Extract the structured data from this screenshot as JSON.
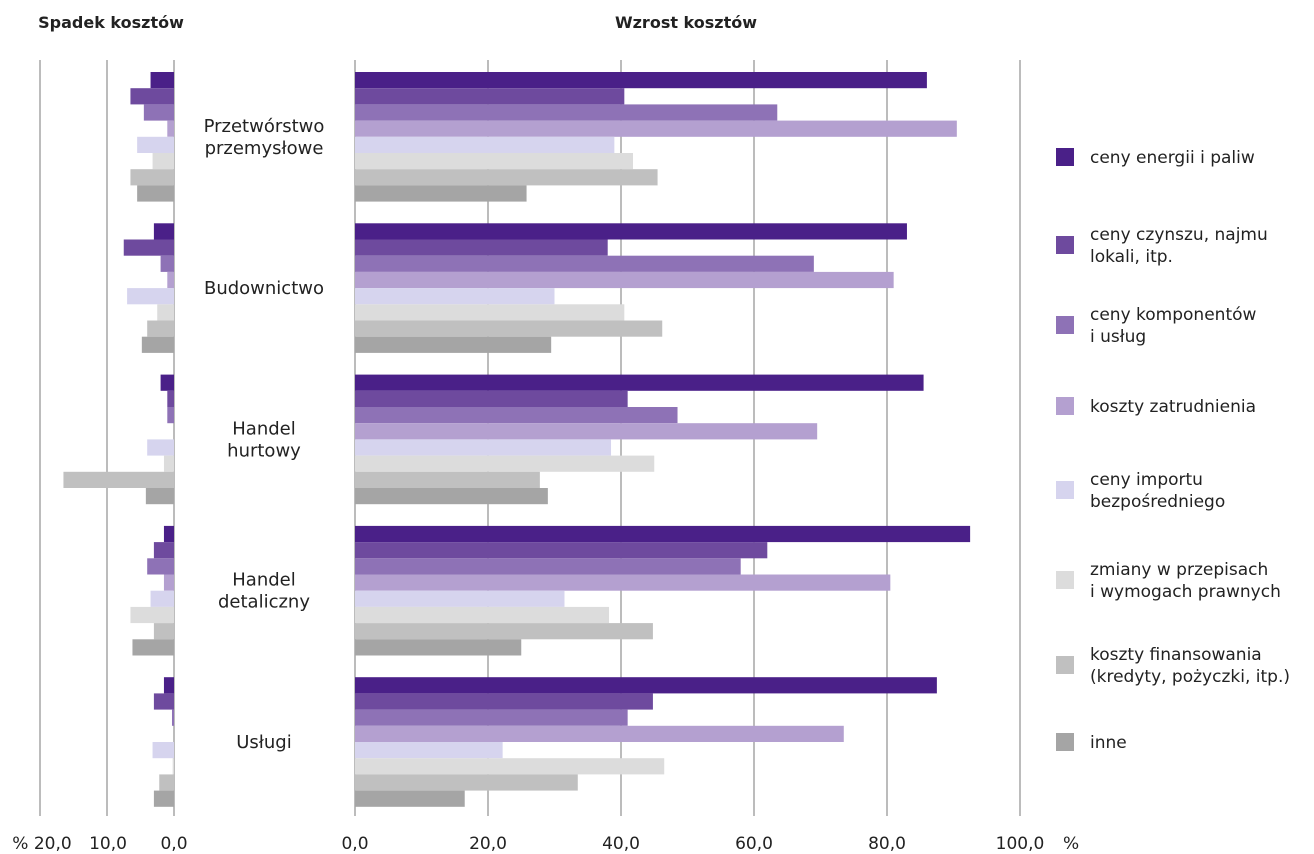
{
  "chart_data": {
    "type": "bar",
    "orientation": "horizontal",
    "unit": "%",
    "left_title": "Spadek kosztów",
    "right_title": "Wzrost kosztów",
    "categories": [
      [
        "Przetwórstwo",
        "przemysłowe"
      ],
      [
        "Budownictwo"
      ],
      [
        "Handel",
        "hurtowy"
      ],
      [
        "Handel",
        "detaliczny"
      ],
      [
        "Usługi"
      ]
    ],
    "series": [
      {
        "name": [
          "ceny energii i paliw"
        ],
        "color": "#4a2088",
        "decrease": [
          3.5,
          3.0,
          2.0,
          1.5,
          1.5
        ],
        "increase": [
          86.0,
          83.0,
          85.5,
          92.5,
          87.5
        ]
      },
      {
        "name": [
          "ceny czynszu, najmu",
          "lokali, itp."
        ],
        "color": "#6e4a9e",
        "decrease": [
          6.5,
          7.5,
          1.0,
          3.0,
          3.0
        ],
        "increase": [
          40.5,
          38.0,
          41.0,
          62.0,
          44.8
        ]
      },
      {
        "name": [
          "ceny komponentów",
          "i usług"
        ],
        "color": "#8e72b6",
        "decrease": [
          4.5,
          2.0,
          1.0,
          4.0,
          0.3
        ],
        "increase": [
          63.5,
          69.0,
          48.5,
          58.0,
          41.0
        ]
      },
      {
        "name": [
          "koszty zatrudnienia"
        ],
        "color": "#b4a0d0",
        "decrease": [
          1.0,
          1.0,
          0.0,
          1.5,
          0.0
        ],
        "increase": [
          90.5,
          81.0,
          69.5,
          80.5,
          73.5
        ]
      },
      {
        "name": [
          "ceny importu",
          "bezpośredniego"
        ],
        "color": "#d6d4ee",
        "decrease": [
          5.5,
          7.0,
          4.0,
          3.5,
          3.2
        ],
        "increase": [
          39.0,
          30.0,
          38.5,
          31.5,
          22.2
        ]
      },
      {
        "name": [
          "zmiany w przepisach",
          "i wymogach prawnych"
        ],
        "color": "#dcdcdc",
        "decrease": [
          3.2,
          2.5,
          1.5,
          6.5,
          0.2
        ],
        "increase": [
          41.8,
          40.5,
          45.0,
          38.2,
          46.5
        ]
      },
      {
        "name": [
          "koszty finansowania",
          "(kredyty, pożyczki, itp.)"
        ],
        "color": "#c0c0c0",
        "decrease": [
          6.5,
          4.0,
          16.5,
          3.0,
          2.2
        ],
        "increase": [
          45.5,
          46.2,
          27.8,
          44.8,
          33.5
        ]
      },
      {
        "name": [
          "inne"
        ],
        "color": "#a5a5a5",
        "decrease": [
          5.5,
          4.8,
          4.2,
          6.2,
          3.0
        ],
        "increase": [
          25.8,
          29.5,
          29.0,
          25.0,
          16.5
        ]
      }
    ],
    "left_axis": {
      "ticks": [
        "% 20,0",
        "10,0",
        "0,0"
      ],
      "tick_values": [
        20,
        10,
        0
      ],
      "range": [
        0,
        20
      ]
    },
    "right_axis": {
      "ticks": [
        "0,0",
        "20,0",
        "40,0",
        "60,0",
        "80,0",
        "100,0"
      ],
      "tick_values": [
        0,
        20,
        40,
        60,
        80,
        100
      ],
      "range": [
        0,
        100
      ],
      "unit_label": "%"
    },
    "grid": true,
    "legend_position": "right"
  }
}
